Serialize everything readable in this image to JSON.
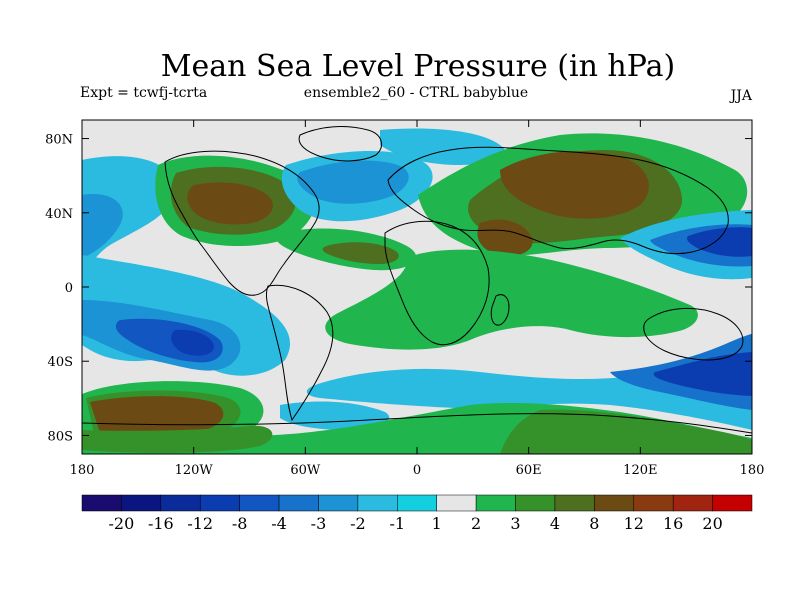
{
  "title": "Mean Sea Level Pressure (in hPa)",
  "subtitle_left": "Expt = tcwfj-tcrta",
  "subtitle_center": "ensemble2_60 - CTRL babyblue",
  "season": "JJA",
  "axes": {
    "y_ticks": [
      {
        "label": "80N",
        "value": 80
      },
      {
        "label": "40N",
        "value": 40
      },
      {
        "label": "0",
        "value": 0
      },
      {
        "label": "40S",
        "value": -40
      },
      {
        "label": "80S",
        "value": -80
      }
    ],
    "x_ticks": [
      {
        "label": "180",
        "value": -180
      },
      {
        "label": "120W",
        "value": -120
      },
      {
        "label": "60W",
        "value": -60
      },
      {
        "label": "0",
        "value": 0
      },
      {
        "label": "60E",
        "value": 60
      },
      {
        "label": "120E",
        "value": 120
      },
      {
        "label": "180",
        "value": 180
      }
    ]
  },
  "legend": {
    "levels": [
      "-20",
      "-16",
      "-12",
      "-8",
      "-4",
      "-3",
      "-2",
      "-1",
      "1",
      "2",
      "3",
      "4",
      "8",
      "12",
      "16",
      "20"
    ],
    "colors": [
      "#1a0b6e",
      "#0a1580",
      "#0a2b9a",
      "#0b3db0",
      "#1256c2",
      "#1772cc",
      "#1c93d4",
      "#2bbbe0",
      "#14cfe0",
      "#e6e6e6",
      "#21b54e",
      "#35922b",
      "#4d6f1f",
      "#6b4a14",
      "#8a3a10",
      "#a02410",
      "#c40000"
    ]
  },
  "chart_data": {
    "type": "heatmap",
    "title": "Mean Sea Level Pressure (in hPa)",
    "units": "hPa",
    "season": "JJA",
    "xrange": [
      -180,
      180
    ],
    "yrange": [
      -90,
      90
    ],
    "field_features": [
      {
        "name": "NH Pacific negative",
        "lon": -168,
        "lat": 36,
        "value": -2
      },
      {
        "name": "Central Pacific negative",
        "lon": -130,
        "lat": 10,
        "value": -2
      },
      {
        "name": "SE Pacific negative",
        "lon": -125,
        "lat": -30,
        "value": -4
      },
      {
        "name": "S Pacific positive",
        "lon": -140,
        "lat": -70,
        "value": 8
      },
      {
        "name": "North America positive",
        "lon": -100,
        "lat": 45,
        "value": 4
      },
      {
        "name": "North Atlantic negative",
        "lon": -35,
        "lat": 65,
        "value": -2
      },
      {
        "name": "Asia positive",
        "lon": 85,
        "lat": 60,
        "value": 8
      },
      {
        "name": "Arabia positive",
        "lon": 50,
        "lat": 25,
        "value": 4
      },
      {
        "name": "Equatorial Africa/Indian Ocean positive",
        "lon": 60,
        "lat": -10,
        "value": 2
      },
      {
        "name": "W Pacific negative",
        "lon": 160,
        "lat": 30,
        "value": -4
      },
      {
        "name": "S Indian Ocean negative",
        "lon": 40,
        "lat": -58,
        "value": -2
      },
      {
        "name": "SW Pacific negative",
        "lon": 165,
        "lat": -60,
        "value": -4
      },
      {
        "name": "Antarctic coast positive",
        "lon": 80,
        "lat": -75,
        "value": 3
      }
    ]
  }
}
